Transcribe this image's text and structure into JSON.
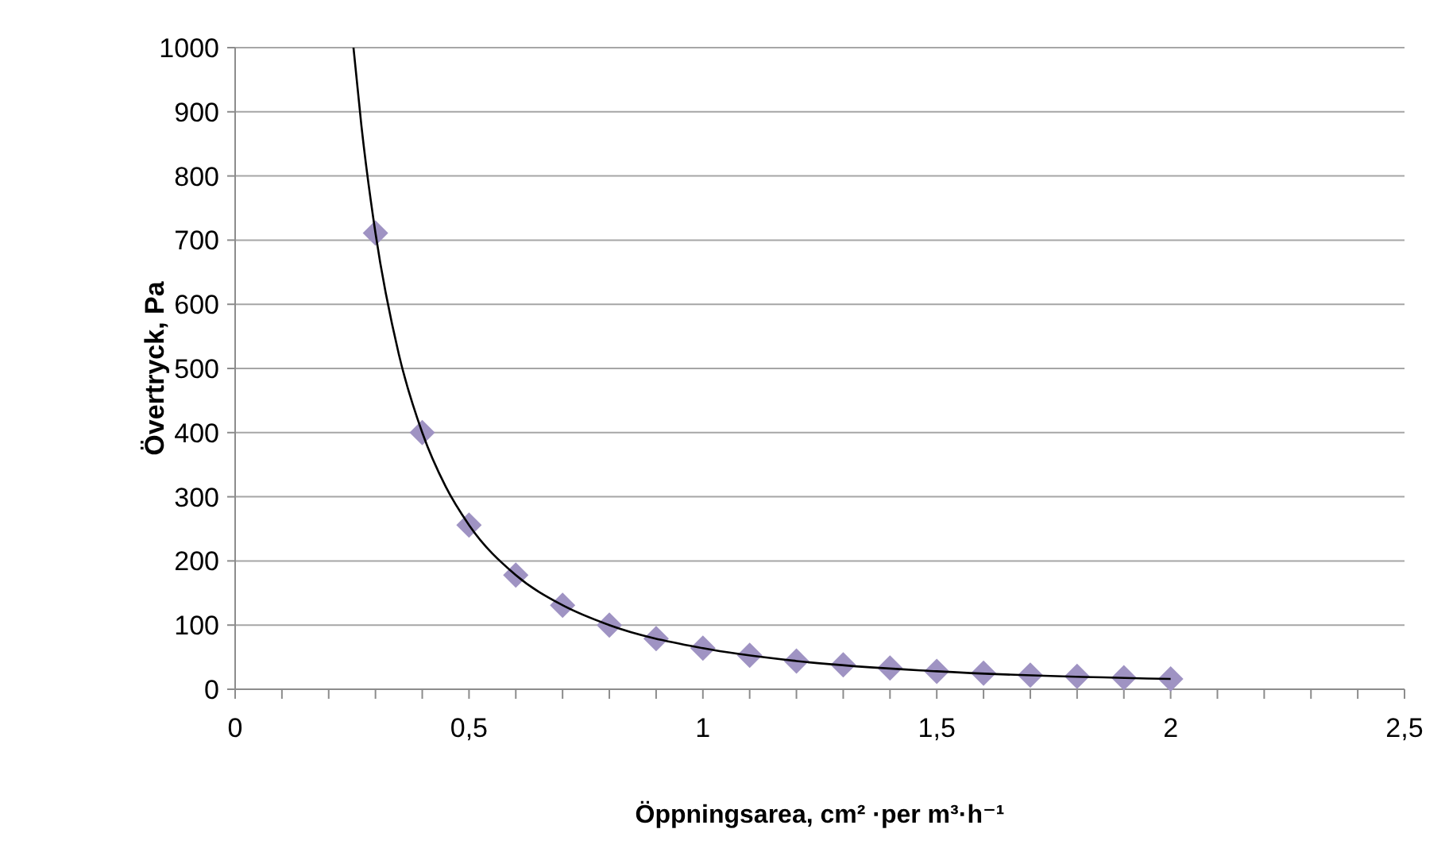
{
  "chart_data": {
    "type": "scatter",
    "xlabel": "Öppningsarea, cm² ·per m³·h⁻¹",
    "ylabel": "Övertryck, Pa",
    "xlim": [
      0,
      2.5
    ],
    "ylim": [
      0,
      1000
    ],
    "xticks": [
      0,
      {
        "value": 0.1,
        "label": null
      },
      {
        "value": 0.2,
        "label": null
      },
      {
        "value": 0.3,
        "label": null
      },
      {
        "value": 0.4,
        "label": null
      },
      {
        "value": 0.5,
        "label": "0,5"
      },
      {
        "value": 0.6,
        "label": null
      },
      {
        "value": 0.7,
        "label": null
      },
      {
        "value": 0.8,
        "label": null
      },
      {
        "value": 0.9,
        "label": null
      },
      1,
      {
        "value": 1.1,
        "label": null
      },
      {
        "value": 1.2,
        "label": null
      },
      {
        "value": 1.3,
        "label": null
      },
      {
        "value": 1.4,
        "label": null
      },
      {
        "value": 1.5,
        "label": "1,5"
      },
      {
        "value": 1.6,
        "label": null
      },
      {
        "value": 1.7,
        "label": null
      },
      {
        "value": 1.8,
        "label": null
      },
      {
        "value": 1.9,
        "label": null
      },
      2,
      {
        "value": 2.1,
        "label": null
      },
      {
        "value": 2.2,
        "label": null
      },
      {
        "value": 2.3,
        "label": null
      },
      {
        "value": 2.4,
        "label": null
      },
      {
        "value": 2.5,
        "label": "2,5"
      }
    ],
    "yticks": [
      0,
      100,
      200,
      300,
      400,
      500,
      600,
      700,
      800,
      900,
      1000
    ],
    "grid": "y",
    "series": [
      {
        "marker": "diamond",
        "color": "#9f93c3",
        "x": [
          0.3,
          0.4,
          0.5,
          0.6,
          0.7,
          0.8,
          0.9,
          1.0,
          1.1,
          1.2,
          1.3,
          1.4,
          1.5,
          1.6,
          1.7,
          1.8,
          1.9,
          2.0
        ],
        "values": [
          711,
          400,
          256,
          178,
          131,
          100,
          79,
          64,
          53,
          44,
          38,
          33,
          28,
          25,
          22,
          20,
          18,
          16
        ]
      },
      {
        "type": "line",
        "marker": "none",
        "line_style": "solid",
        "color": "#000000",
        "x": [
          0.253,
          0.27,
          0.3,
          0.35,
          0.4,
          0.45,
          0.5,
          0.6,
          0.7,
          0.8,
          1.0,
          1.2,
          1.5,
          2.0
        ],
        "values": [
          1000,
          878,
          711,
          522,
          400,
          316,
          256,
          178,
          131,
          100,
          64,
          44,
          28,
          16
        ]
      }
    ]
  }
}
